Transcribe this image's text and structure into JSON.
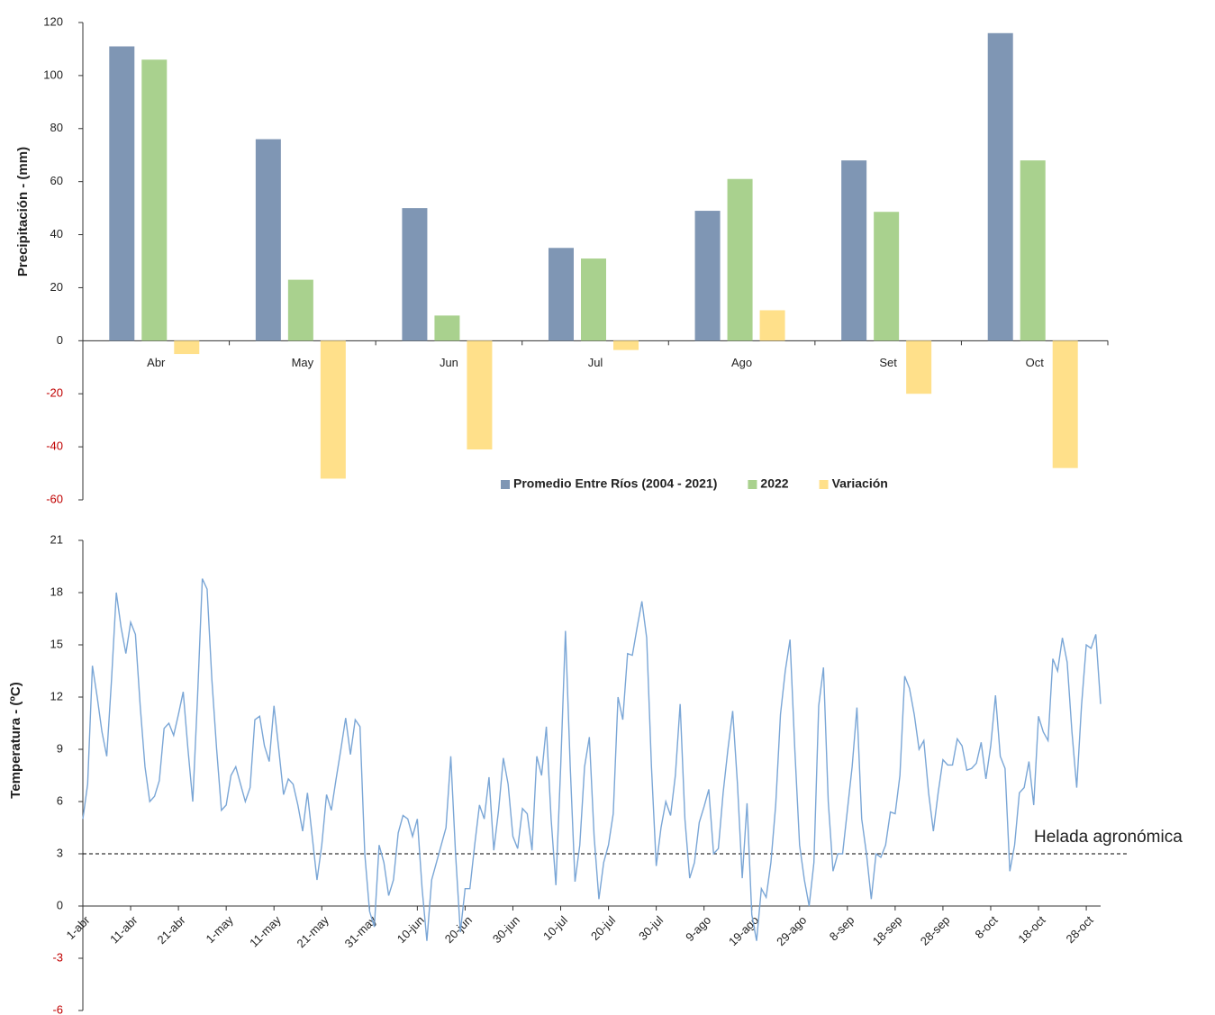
{
  "chart_data": [
    {
      "type": "bar",
      "y_label": "Precipitación - (mm)",
      "categories": [
        "Abr",
        "May",
        "Jun",
        "Jul",
        "Ago",
        "Set",
        "Oct"
      ],
      "series": [
        {
          "name": "Promedio Entre Ríos (2004 - 2021)",
          "color": "#7f96b4",
          "values": [
            111,
            76,
            50,
            35,
            49,
            68,
            116
          ]
        },
        {
          "name": "2022",
          "color": "#a9d18e",
          "values": [
            106,
            23,
            9.5,
            31,
            61,
            48.6,
            68
          ]
        },
        {
          "name": "Variación",
          "color": "#ffe08a",
          "values": [
            -5,
            -52,
            -41,
            -3.5,
            11.5,
            -20,
            -48
          ]
        }
      ],
      "ylim": [
        -60,
        120
      ],
      "yticks": [
        -60,
        -40,
        -20,
        0,
        20,
        40,
        60,
        80,
        100,
        120
      ],
      "negative_tick_color": "#c00000",
      "legend": "bottom"
    },
    {
      "type": "line",
      "y_label": "Temperatura - (ºC)",
      "categories": [
        "1-abr",
        null,
        null,
        null,
        null,
        null,
        null,
        null,
        null,
        null,
        "11-abr",
        null,
        null,
        null,
        null,
        null,
        null,
        null,
        null,
        null,
        "21-abr",
        null,
        null,
        null,
        null,
        null,
        null,
        null,
        null,
        null,
        "1-may",
        null,
        null,
        null,
        null,
        null,
        null,
        null,
        null,
        null,
        "11-may",
        null,
        null,
        null,
        null,
        null,
        null,
        null,
        null,
        null,
        "21-may",
        null,
        null,
        null,
        null,
        null,
        null,
        null,
        null,
        null,
        "31-may",
        null,
        null,
        null,
        null,
        null,
        null,
        null,
        null,
        null,
        "10-jun",
        null,
        null,
        null,
        null,
        null,
        null,
        null,
        null,
        null,
        "20-jun",
        null,
        null,
        null,
        null,
        null,
        null,
        null,
        null,
        null,
        "30-jun",
        null,
        null,
        null,
        null,
        null,
        null,
        null,
        null,
        null,
        "10-jul",
        null,
        null,
        null,
        null,
        null,
        null,
        null,
        null,
        null,
        "20-jul",
        null,
        null,
        null,
        null,
        null,
        null,
        null,
        null,
        null,
        "30-jul",
        null,
        null,
        null,
        null,
        null,
        null,
        null,
        null,
        null,
        "9-ago",
        null,
        null,
        null,
        null,
        null,
        null,
        null,
        null,
        null,
        "19-ago",
        null,
        null,
        null,
        null,
        null,
        null,
        null,
        null,
        null,
        "29-ago",
        null,
        null,
        null,
        null,
        null,
        null,
        null,
        null,
        null,
        "8-sep",
        null,
        null,
        null,
        null,
        null,
        null,
        null,
        null,
        null,
        "18-sep",
        null,
        null,
        null,
        null,
        null,
        null,
        null,
        null,
        null,
        "28-sep",
        null,
        null,
        null,
        null,
        null,
        null,
        null,
        null,
        null,
        "8-oct",
        null,
        null,
        null,
        null,
        null,
        null,
        null,
        null,
        null,
        "18-oct",
        null,
        null,
        null,
        null,
        null,
        null,
        null,
        null,
        null,
        "28-oct",
        null,
        null,
        null
      ],
      "series": [
        {
          "color": "#7aa6d6",
          "values": [
            5.0,
            7,
            13.8,
            12,
            10,
            8.6,
            13,
            18,
            16,
            14.5,
            16.3,
            15.6,
            11.5,
            8,
            6,
            6.3,
            7.2,
            10.2,
            10.5,
            9.8,
            11,
            12.3,
            9,
            6,
            12,
            18.8,
            18.2,
            13,
            9,
            5.5,
            5.8,
            7.5,
            8,
            7,
            6,
            6.8,
            10.7,
            10.9,
            9.2,
            8.3,
            11.5,
            9,
            6.4,
            7.3,
            7,
            5.8,
            4.3,
            6.5,
            4,
            1.5,
            3.5,
            6.4,
            5.5,
            7.3,
            9,
            10.8,
            8.7,
            10.7,
            10.3,
            3,
            -0.3,
            -1.2,
            3.5,
            2.5,
            0.6,
            1.5,
            4.2,
            5.2,
            5,
            4,
            5,
            1,
            -2,
            1.5,
            2.5,
            3.5,
            4.5,
            8.6,
            3,
            -1.5,
            1,
            1,
            3.5,
            5.8,
            5,
            7.4,
            3.2,
            5.5,
            8.5,
            7,
            4,
            3.3,
            5.6,
            5.3,
            3.2,
            8.6,
            7.5,
            10.3,
            5,
            1.2,
            8,
            15.8,
            8,
            1.4,
            3.5,
            8,
            9.7,
            4,
            0.4,
            2.5,
            3.5,
            5.3,
            12,
            10.7,
            14.5,
            14.4,
            16,
            17.5,
            15.4,
            8,
            2.3,
            4.5,
            6,
            5.2,
            7.5,
            11.6,
            5,
            1.6,
            2.5,
            4.8,
            5.7,
            6.7,
            3,
            3.3,
            6.5,
            9,
            11.2,
            7,
            1.6,
            5.9,
            -0.5,
            -2,
            1,
            0.5,
            2.5,
            5.8,
            11,
            13.5,
            15.3,
            9,
            3.5,
            1.5,
            0,
            2.5,
            11.5,
            13.7,
            6,
            2,
            3,
            3,
            5.5,
            8,
            11.4,
            5,
            3,
            0.4,
            3,
            2.8,
            3.5,
            5.4,
            5.3,
            7.5,
            13.2,
            12.5,
            11,
            9,
            9.5,
            6.5,
            4.3,
            6.5,
            8.4,
            8.1,
            8.1,
            9.6,
            9.2,
            7.8,
            7.9,
            8.2,
            9.4,
            7.3,
            9.2,
            12.1,
            8.6,
            7.9,
            2,
            3.5,
            6.5,
            6.8,
            8.3,
            5.8,
            10.9,
            10,
            9.5,
            14.2,
            13.5,
            15.4,
            14,
            10,
            6.8,
            11.5,
            15,
            14.8,
            15.6,
            11.6
          ]
        }
      ],
      "ylim": [
        -6,
        21
      ],
      "yticks": [
        -6,
        -3,
        0,
        3,
        6,
        9,
        12,
        15,
        18,
        21
      ],
      "negative_tick_color": "#c00000",
      "hline": {
        "value": 3,
        "label": "Helada agronómica"
      }
    }
  ]
}
